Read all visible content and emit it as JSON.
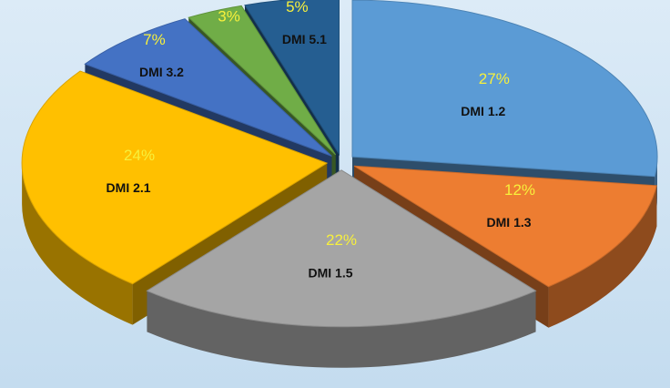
{
  "chart_data": {
    "type": "pie",
    "categories": [
      "DMI 1.2",
      "DMI 1.3",
      "DMI 1.5",
      "DMI 2.1",
      "DMI 3.2",
      null,
      "DMI 5.1"
    ],
    "values": [
      27,
      12,
      22,
      24,
      7,
      3,
      5
    ],
    "value_labels": [
      "27%",
      "12%",
      "22%",
      "24%",
      "7%",
      "3%",
      "5%"
    ],
    "colors": [
      "#5b9bd5",
      "#ed7d31",
      "#a5a5a5",
      "#ffc000",
      "#4472c4",
      "#70ad47",
      "#255e91"
    ]
  }
}
